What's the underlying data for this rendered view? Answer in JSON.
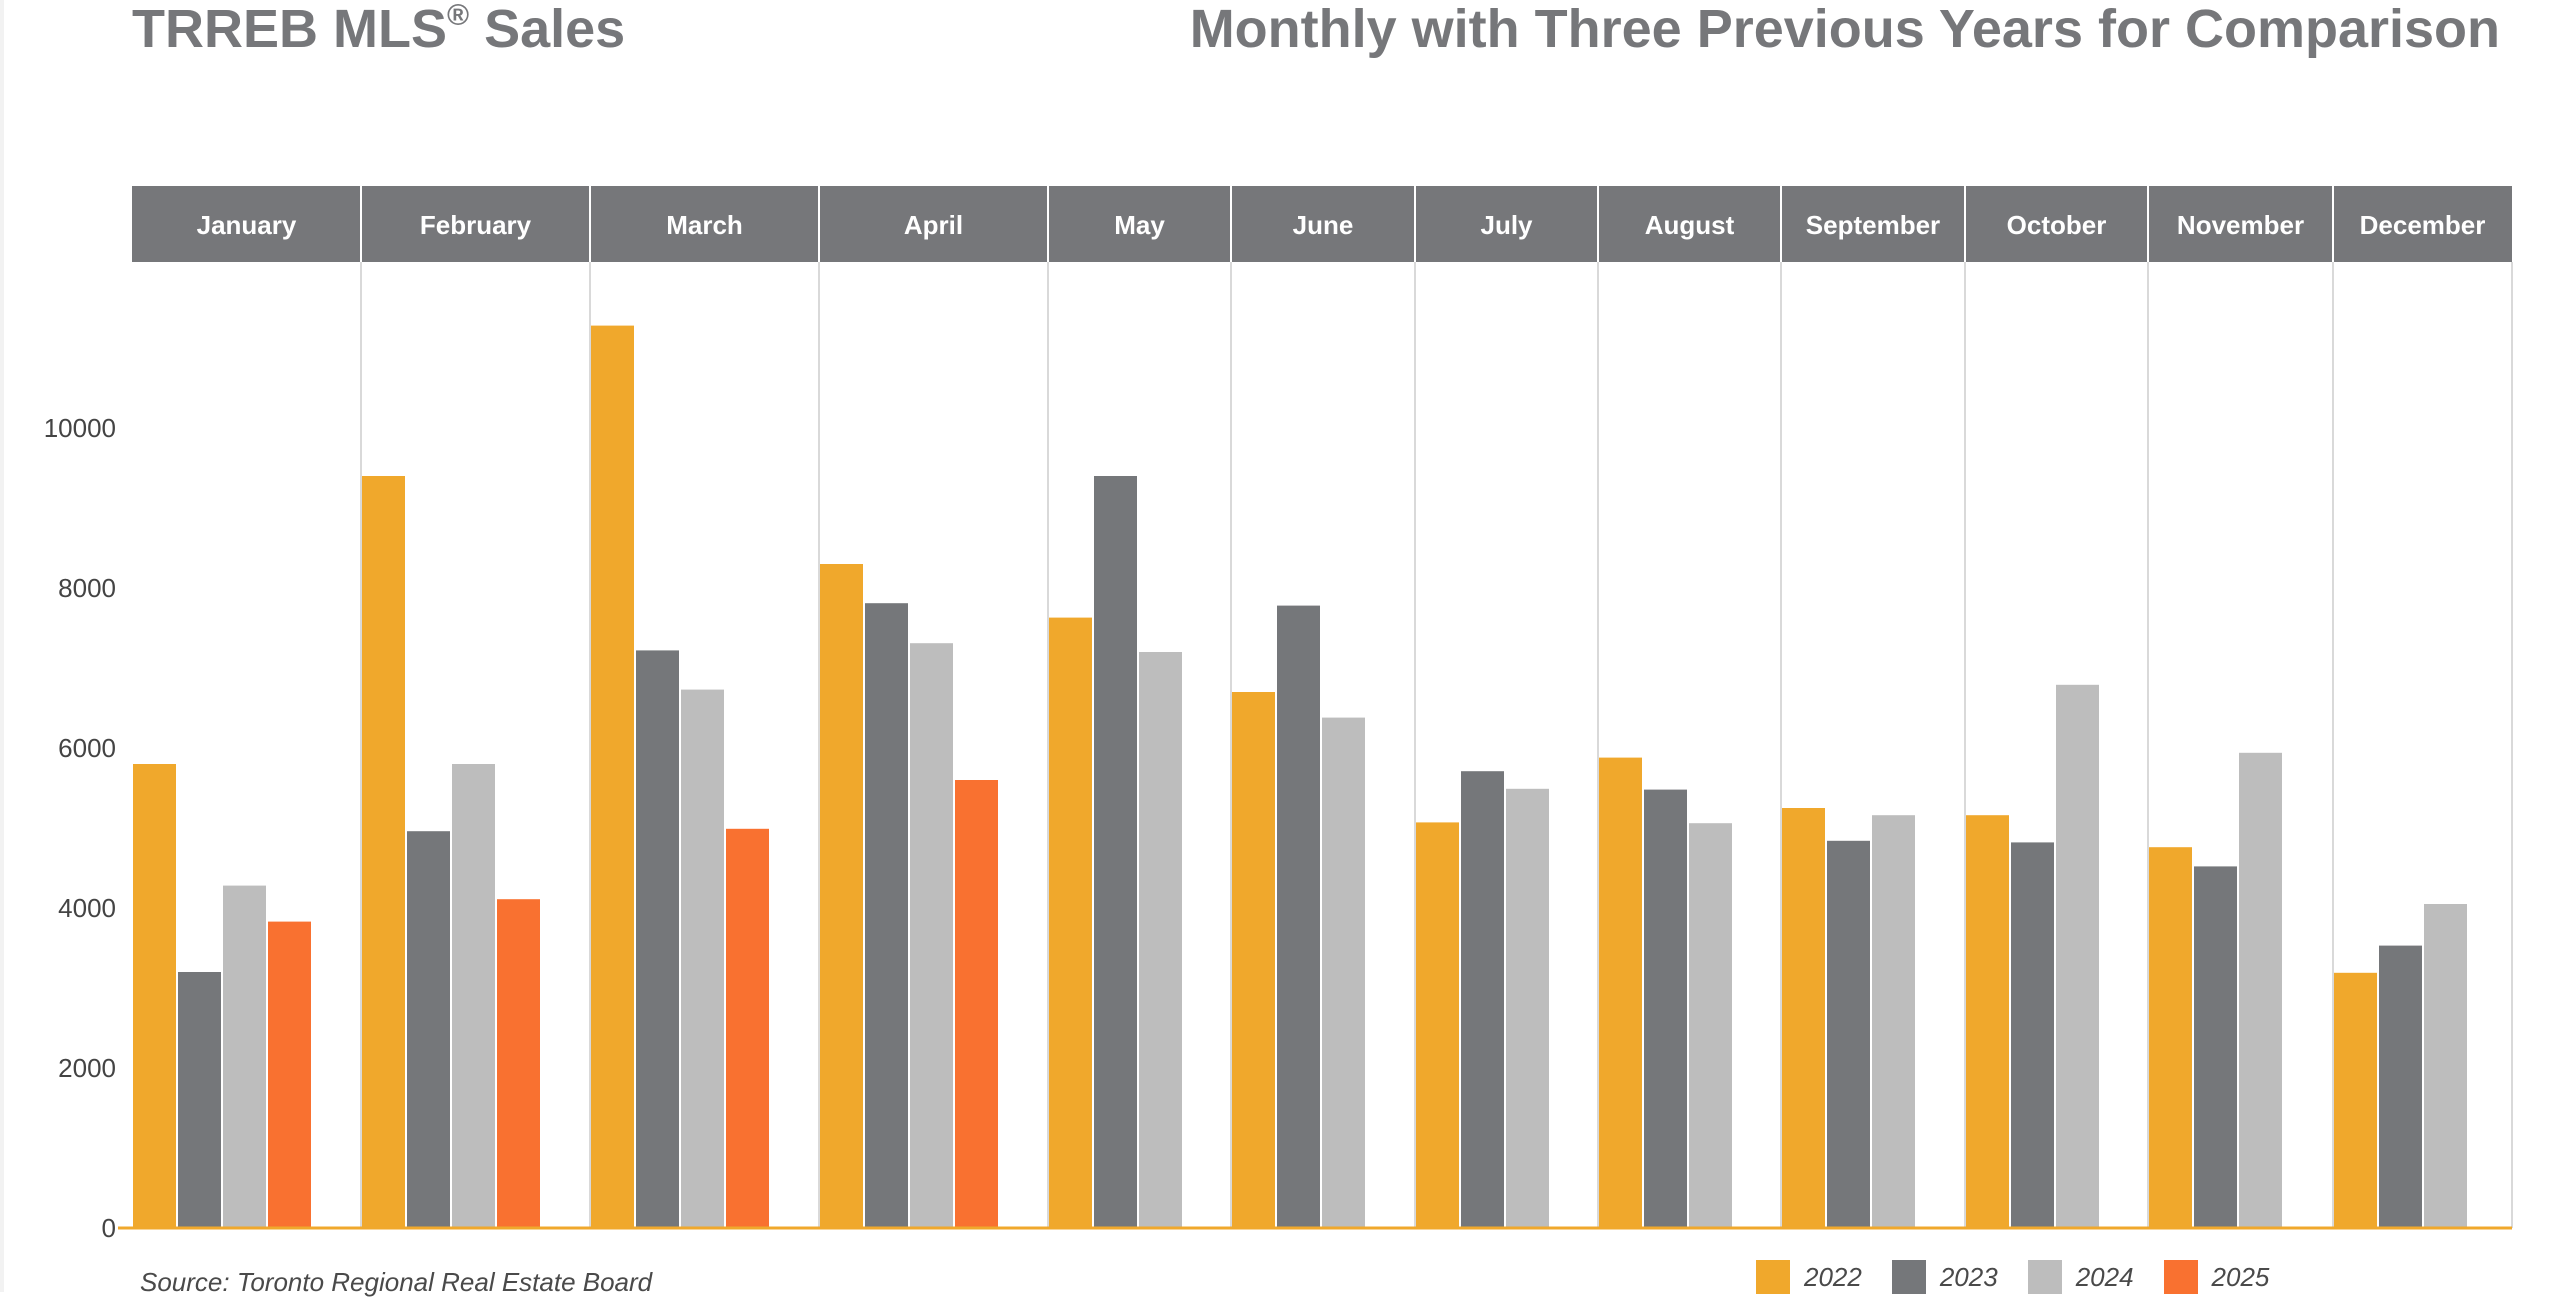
{
  "header": {
    "title_main": "TRREB MLS",
    "title_reg": "®",
    "title_tail": " Sales",
    "subtitle": "Monthly with Three Previous Years for Comparison"
  },
  "footer": {
    "source": "Source: Toronto Regional Real Estate Board"
  },
  "colors": {
    "header_band": "#76777a",
    "axis_line": "#f0a82c",
    "divider": "#d9d9d9"
  },
  "chart_data": {
    "type": "bar",
    "title": "Monthly with Three Previous Years for Comparison",
    "categories": [
      "January",
      "February",
      "March",
      "April",
      "May",
      "June",
      "July",
      "August",
      "September",
      "October",
      "November",
      "December"
    ],
    "ylim": [
      0,
      12000
    ],
    "yticks": [
      0,
      2000,
      4000,
      6000,
      8000,
      10000
    ],
    "grid": false,
    "legend_position": "bottom-right",
    "series": [
      {
        "name": "2022",
        "color": "#f0a82c",
        "values": [
          5800,
          9400,
          11280,
          8300,
          7630,
          6700,
          5070,
          5880,
          5250,
          5160,
          4760,
          3190
        ]
      },
      {
        "name": "2023",
        "color": "#75777a",
        "values": [
          3200,
          4960,
          7220,
          7810,
          9400,
          7780,
          5710,
          5480,
          4840,
          4820,
          4520,
          3530
        ]
      },
      {
        "name": "2024",
        "color": "#bdbdbd",
        "values": [
          4280,
          5800,
          6730,
          7310,
          7200,
          6380,
          5490,
          5060,
          5160,
          6790,
          5940,
          4050
        ]
      },
      {
        "name": "2025",
        "color": "#f97130",
        "values": [
          3830,
          4110,
          4990,
          5600,
          null,
          null,
          null,
          null,
          null,
          null,
          null,
          null
        ]
      }
    ]
  }
}
